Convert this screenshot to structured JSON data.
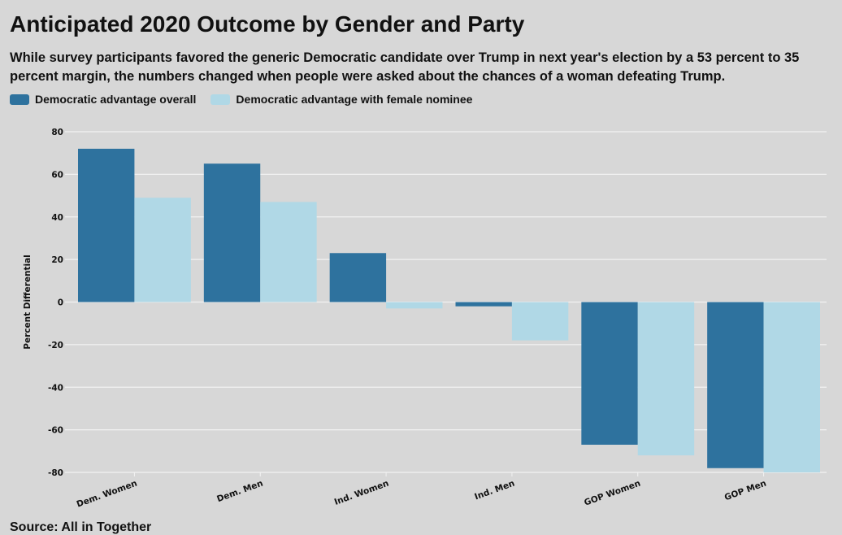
{
  "title": "Anticipated 2020 Outcome by Gender and Party",
  "subtitle": "While survey participants favored the generic Democratic candidate over Trump in next year's election by a 53 percent to 35 percent margin, the numbers changed when people were asked about the chances of a woman defeating Trump.",
  "source": "Source: All in Together",
  "chart_data": {
    "type": "bar",
    "categories": [
      "Dem. Women",
      "Dem. Men",
      "Ind. Women",
      "Ind. Men",
      "GOP Women",
      "GOP Men"
    ],
    "series": [
      {
        "name": "Democratic advantage overall",
        "color": "#2e729e",
        "values": [
          72,
          65,
          23,
          -2,
          -67,
          -78
        ]
      },
      {
        "name": "Democratic advantage with female nominee",
        "color": "#b0d8e6",
        "values": [
          49,
          47,
          -3,
          -18,
          -72,
          -80
        ]
      }
    ],
    "ylabel": "Percent Differential",
    "xlabel": "",
    "ylim": [
      -80,
      80
    ],
    "yticks": [
      80,
      60,
      40,
      20,
      0,
      -20,
      -40,
      -60,
      -80
    ],
    "grid": true,
    "legend": "top-left"
  }
}
